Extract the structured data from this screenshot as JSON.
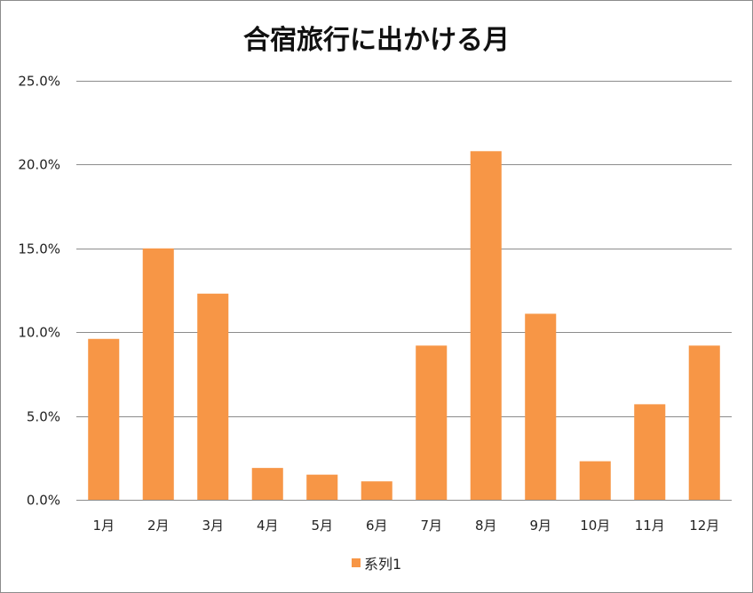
{
  "chart_data": {
    "type": "bar",
    "title": "合宿旅行に出かける月",
    "categories": [
      "1月",
      "2月",
      "3月",
      "4月",
      "5月",
      "6月",
      "7月",
      "8月",
      "9月",
      "10月",
      "11月",
      "12月"
    ],
    "series": [
      {
        "name": "系列1",
        "values": [
          9.6,
          15.0,
          12.3,
          1.9,
          1.5,
          1.1,
          9.2,
          20.8,
          11.1,
          2.3,
          5.7,
          9.2
        ],
        "color": "#F79646"
      }
    ],
    "value_format": "percent_1dp",
    "ylim": [
      0,
      25
    ],
    "yticks": [
      0,
      5,
      10,
      15,
      20,
      25
    ],
    "ytick_labels": [
      "0.0%",
      "5.0%",
      "10.0%",
      "15.0%",
      "20.0%",
      "25.0%"
    ],
    "grid": true,
    "gridline_color": "#8c8c8c",
    "legend_position": "bottom"
  }
}
